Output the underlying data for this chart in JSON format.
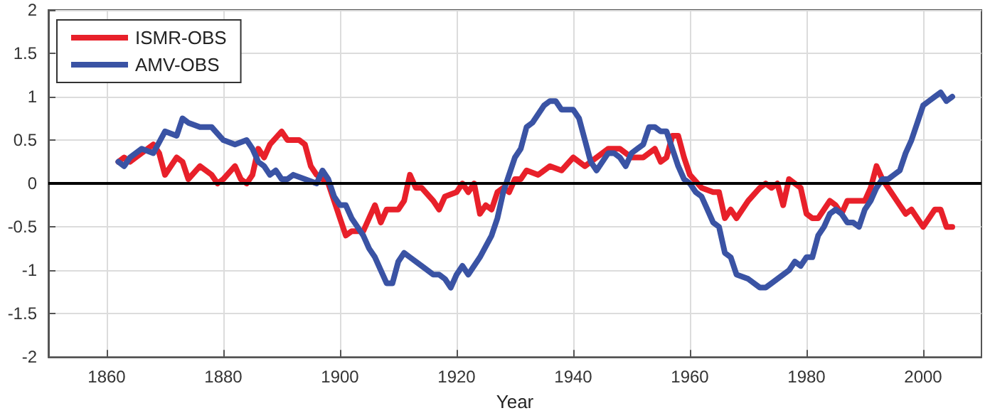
{
  "chart_data": {
    "type": "line",
    "xlabel": "Year",
    "xlim": [
      1850,
      2010
    ],
    "xticks": [
      1860,
      1880,
      1900,
      1920,
      1940,
      1960,
      1980,
      2000
    ],
    "ylim": [
      -2,
      2
    ],
    "yticks": [
      -2,
      -1.5,
      -1,
      -0.5,
      0,
      0.5,
      1,
      1.5,
      2
    ],
    "grid": true,
    "legend": "top left",
    "marker": "none",
    "line_style": "solid",
    "ref_lines": [
      {
        "axis": "y",
        "value": 0,
        "color": "#000000"
      }
    ],
    "series": [
      {
        "name": "ISMR-OBS",
        "color": "#e8202a",
        "x": [
          1862,
          1863,
          1864,
          1866,
          1868,
          1869,
          1870,
          1872,
          1873,
          1874,
          1876,
          1878,
          1879,
          1880,
          1882,
          1883,
          1884,
          1885,
          1886,
          1887,
          1888,
          1890,
          1891,
          1893,
          1894,
          1895,
          1896,
          1898,
          1899,
          1900,
          1901,
          1902,
          1904,
          1905,
          1906,
          1907,
          1908,
          1910,
          1911,
          1912,
          1913,
          1914,
          1916,
          1917,
          1918,
          1920,
          1921,
          1922,
          1923,
          1924,
          1925,
          1926,
          1927,
          1928,
          1929,
          1930,
          1931,
          1932,
          1934,
          1936,
          1938,
          1940,
          1942,
          1944,
          1946,
          1948,
          1950,
          1952,
          1954,
          1955,
          1956,
          1957,
          1958,
          1959,
          1960,
          1962,
          1964,
          1965,
          1966,
          1967,
          1968,
          1970,
          1972,
          1973,
          1974,
          1975,
          1976,
          1977,
          1978,
          1979,
          1980,
          1981,
          1982,
          1984,
          1985,
          1986,
          1987,
          1988,
          1990,
          1991,
          1992,
          1993,
          1994,
          1996,
          1997,
          1998,
          2000,
          2001,
          2002,
          2003,
          2004,
          2005
        ],
        "values": [
          0.25,
          0.3,
          0.25,
          0.35,
          0.45,
          0.35,
          0.1,
          0.3,
          0.25,
          0.05,
          0.2,
          0.1,
          0.0,
          0.05,
          0.2,
          0.05,
          0.0,
          0.1,
          0.4,
          0.3,
          0.45,
          0.6,
          0.5,
          0.5,
          0.45,
          0.2,
          0.1,
          0.0,
          -0.2,
          -0.4,
          -0.6,
          -0.55,
          -0.55,
          -0.4,
          -0.25,
          -0.45,
          -0.3,
          -0.3,
          -0.2,
          0.1,
          -0.05,
          -0.05,
          -0.2,
          -0.3,
          -0.15,
          -0.1,
          0.0,
          -0.1,
          0.0,
          -0.35,
          -0.25,
          -0.3,
          -0.1,
          -0.05,
          -0.1,
          0.05,
          0.05,
          0.15,
          0.1,
          0.2,
          0.15,
          0.3,
          0.2,
          0.3,
          0.4,
          0.4,
          0.3,
          0.3,
          0.4,
          0.25,
          0.3,
          0.55,
          0.55,
          0.3,
          0.1,
          -0.05,
          -0.1,
          -0.1,
          -0.4,
          -0.3,
          -0.4,
          -0.2,
          -0.05,
          0.0,
          -0.05,
          0.0,
          -0.25,
          0.05,
          0.0,
          -0.05,
          -0.35,
          -0.4,
          -0.4,
          -0.2,
          -0.25,
          -0.35,
          -0.2,
          -0.2,
          -0.2,
          -0.05,
          0.2,
          0.05,
          -0.05,
          -0.25,
          -0.35,
          -0.3,
          -0.5,
          -0.4,
          -0.3,
          -0.3,
          -0.5,
          -0.5
        ]
      },
      {
        "name": "AMV-OBS",
        "color": "#3a53a4",
        "x": [
          1862,
          1863,
          1864,
          1866,
          1868,
          1870,
          1872,
          1873,
          1874,
          1876,
          1878,
          1880,
          1882,
          1884,
          1885,
          1886,
          1887,
          1888,
          1889,
          1890,
          1891,
          1892,
          1894,
          1896,
          1897,
          1898,
          1899,
          1900,
          1901,
          1902,
          1903,
          1904,
          1905,
          1906,
          1907,
          1908,
          1909,
          1910,
          1911,
          1912,
          1914,
          1916,
          1917,
          1918,
          1919,
          1920,
          1921,
          1922,
          1924,
          1926,
          1927,
          1928,
          1929,
          1930,
          1931,
          1932,
          1933,
          1934,
          1935,
          1936,
          1937,
          1938,
          1939,
          1940,
          1941,
          1942,
          1943,
          1944,
          1946,
          1947,
          1948,
          1949,
          1950,
          1951,
          1952,
          1953,
          1954,
          1955,
          1956,
          1957,
          1958,
          1959,
          1960,
          1961,
          1962,
          1963,
          1964,
          1965,
          1966,
          1967,
          1968,
          1970,
          1972,
          1973,
          1974,
          1976,
          1977,
          1978,
          1979,
          1980,
          1981,
          1982,
          1983,
          1984,
          1985,
          1986,
          1987,
          1988,
          1989,
          1990,
          1991,
          1992,
          1993,
          1994,
          1995,
          1996,
          1997,
          1998,
          1999,
          2000,
          2001,
          2002,
          2003,
          2004,
          2005
        ],
        "values": [
          0.25,
          0.2,
          0.3,
          0.4,
          0.35,
          0.6,
          0.55,
          0.75,
          0.7,
          0.65,
          0.65,
          0.5,
          0.45,
          0.5,
          0.4,
          0.25,
          0.2,
          0.1,
          0.15,
          0.05,
          0.05,
          0.1,
          0.05,
          0.0,
          0.15,
          0.05,
          -0.15,
          -0.25,
          -0.25,
          -0.4,
          -0.5,
          -0.6,
          -0.75,
          -0.85,
          -1.0,
          -1.15,
          -1.15,
          -0.9,
          -0.8,
          -0.85,
          -0.95,
          -1.05,
          -1.05,
          -1.1,
          -1.2,
          -1.05,
          -0.95,
          -1.05,
          -0.85,
          -0.6,
          -0.4,
          -0.1,
          0.1,
          0.3,
          0.4,
          0.65,
          0.7,
          0.8,
          0.9,
          0.95,
          0.95,
          0.85,
          0.85,
          0.85,
          0.75,
          0.5,
          0.25,
          0.15,
          0.35,
          0.35,
          0.3,
          0.2,
          0.35,
          0.4,
          0.45,
          0.65,
          0.65,
          0.6,
          0.6,
          0.4,
          0.2,
          0.05,
          0.0,
          -0.1,
          -0.15,
          -0.3,
          -0.45,
          -0.5,
          -0.8,
          -0.85,
          -1.05,
          -1.1,
          -1.2,
          -1.2,
          -1.15,
          -1.05,
          -1.0,
          -0.9,
          -0.95,
          -0.85,
          -0.85,
          -0.6,
          -0.5,
          -0.35,
          -0.3,
          -0.35,
          -0.45,
          -0.45,
          -0.5,
          -0.3,
          -0.2,
          -0.05,
          0.05,
          0.05,
          0.1,
          0.15,
          0.35,
          0.5,
          0.7,
          0.9,
          0.95,
          1.0,
          1.05,
          0.95,
          1.0
        ]
      }
    ]
  }
}
